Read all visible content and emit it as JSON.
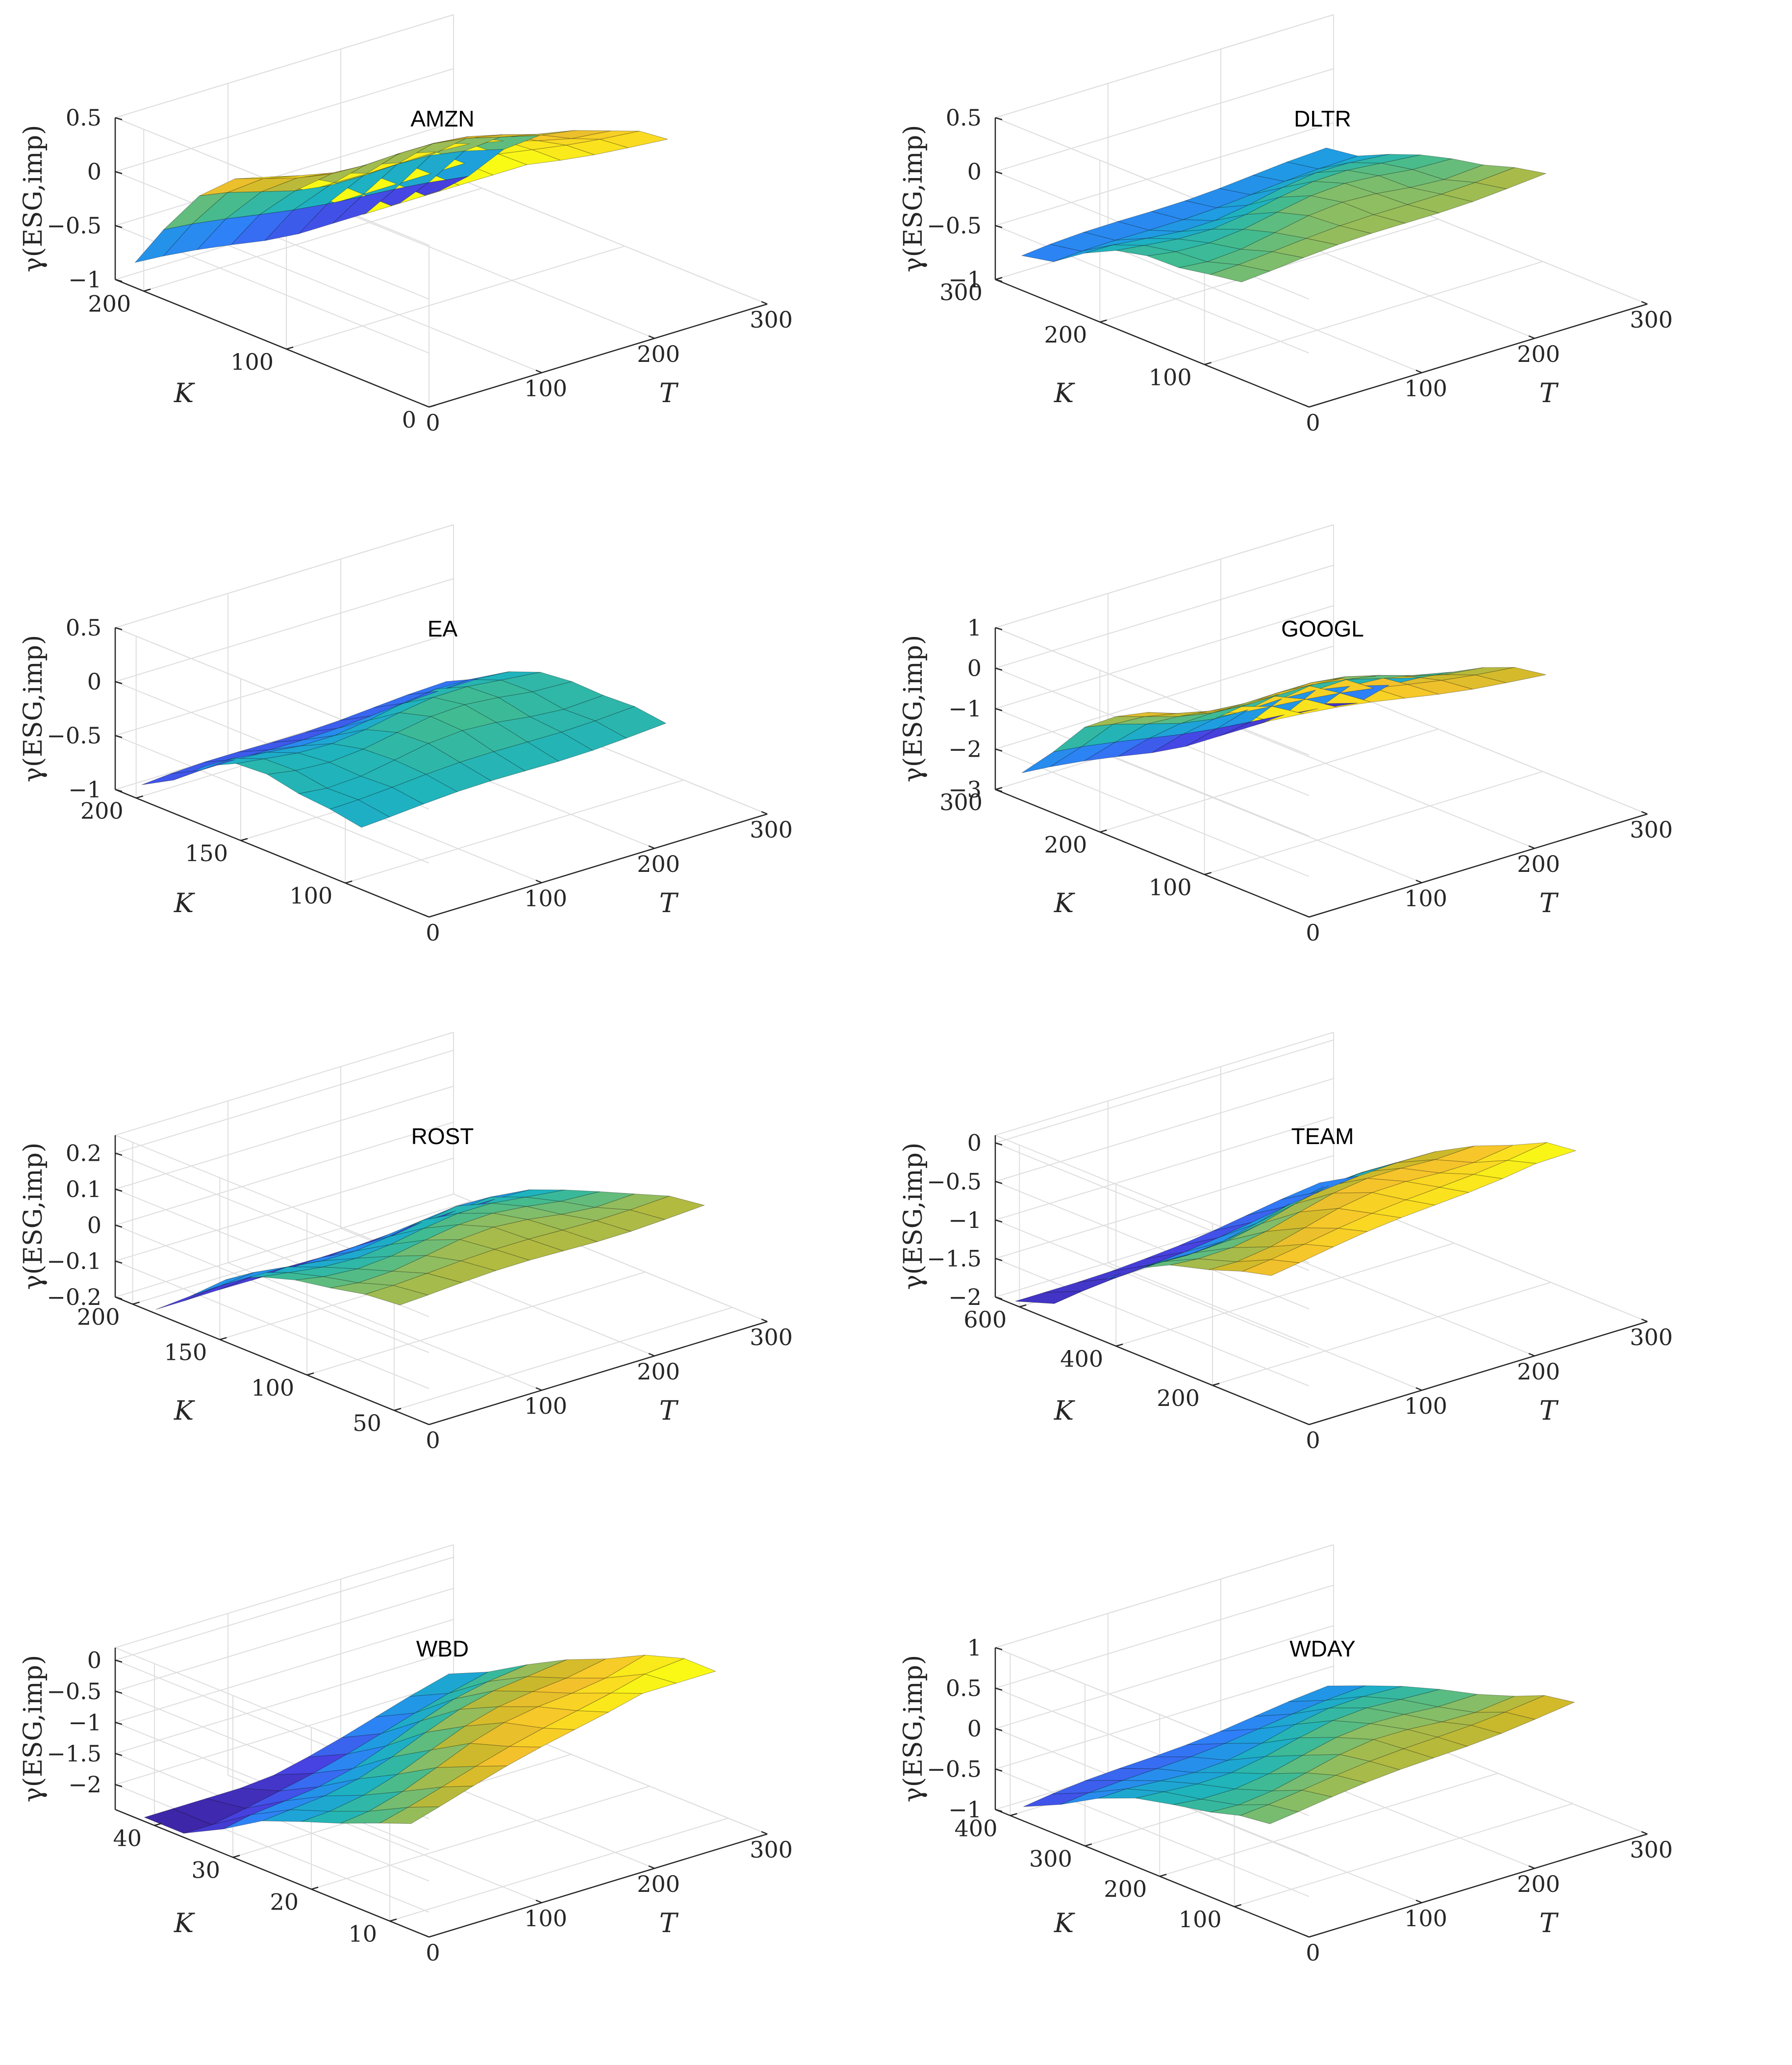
{
  "colors": {
    "colormap": [
      "#3e26a8",
      "#4743e3",
      "#2f7ff8",
      "#1e9ee0",
      "#1eb3be",
      "#42bb90",
      "#8cbd63",
      "#c9b82b",
      "#f5c22c",
      "#fadd20",
      "#f9fb14"
    ],
    "grid": "#dedede",
    "axis": "#262626",
    "mesh_edge": "#000000"
  },
  "chart_data": [
    {
      "type": "surface3d",
      "ticker": "AMZN",
      "zlabel": "γ(ESG,imp)",
      "xlabel": "T",
      "ylabel": "K",
      "xlim": [
        0,
        300
      ],
      "xticks": [
        0,
        100,
        200,
        300
      ],
      "ylim": [
        0,
        220
      ],
      "yticks": [
        0,
        100,
        200
      ],
      "zlim": [
        -1,
        0.5
      ],
      "zticks": [
        -1,
        -0.5,
        0,
        0.5
      ],
      "zticklabels": [
        "−1",
        "−0.5",
        "0",
        "0.5"
      ],
      "grid": true,
      "surface_K": [
        210,
        190,
        165,
        140,
        115,
        90,
        70,
        50
      ],
      "surface_T": [
        5,
        30,
        60,
        90,
        120,
        150,
        180,
        210,
        240,
        275
      ],
      "surface_gamma_by_K": [
        -1.0,
        -0.6,
        -0.2,
        0.1,
        0.3,
        0.42,
        0.48,
        0.5
      ],
      "surface_gamma_T_slope": -0.0009
    },
    {
      "type": "surface3d",
      "ticker": "DLTR",
      "zlabel": "γ(ESG,imp)",
      "xlabel": "T",
      "ylabel": "K",
      "xlim": [
        0,
        300
      ],
      "xticks": [
        0,
        100,
        200,
        300
      ],
      "ylim": [
        0,
        300
      ],
      "yticks": [
        100,
        200,
        300
      ],
      "zlim": [
        -1,
        0.5
      ],
      "zticks": [
        -1,
        -0.5,
        0,
        0.5
      ],
      "zticklabels": [
        "−1",
        "−0.5",
        "0",
        "0.5"
      ],
      "grid": true,
      "surface_K": [
        280,
        250,
        220,
        190,
        160,
        130,
        100,
        70
      ],
      "surface_T": [
        5,
        30,
        60,
        90,
        120,
        150,
        180,
        210,
        240,
        275
      ],
      "surface_gamma_by_K": [
        -0.65,
        -0.6,
        -0.45,
        -0.3,
        -0.2,
        -0.15,
        -0.1,
        -0.05
      ],
      "surface_gamma_T_slope": 0.0003
    },
    {
      "type": "surface3d",
      "ticker": "EA",
      "zlabel": "γ(ESG,imp)",
      "xlabel": "T",
      "ylabel": "K",
      "xlim": [
        0,
        300
      ],
      "xticks": [
        0,
        100,
        200,
        300
      ],
      "ylim": [
        60,
        210
      ],
      "yticks": [
        100,
        150,
        200
      ],
      "zlim": [
        -1,
        0.5
      ],
      "zticks": [
        -1,
        -0.5,
        0,
        0.5
      ],
      "zticklabels": [
        "−1",
        "−0.5",
        "0",
        "0.5"
      ],
      "grid": true,
      "surface_K": [
        200,
        185,
        170,
        155,
        140,
        125,
        110,
        95
      ],
      "surface_T": [
        5,
        30,
        60,
        90,
        120,
        150,
        180,
        210,
        240,
        275
      ],
      "surface_gamma_by_K": [
        -0.85,
        -0.7,
        -0.5,
        -0.35,
        -0.3,
        -0.32,
        -0.35,
        -0.4
      ],
      "surface_gamma_T_slope": 0.0002
    },
    {
      "type": "surface3d",
      "ticker": "GOOGL",
      "zlabel": "γ(ESG,imp)",
      "xlabel": "T",
      "ylabel": "K",
      "xlim": [
        0,
        300
      ],
      "xticks": [
        0,
        100,
        200,
        300
      ],
      "ylim": [
        0,
        300
      ],
      "yticks": [
        100,
        200,
        300
      ],
      "zlim": [
        -3,
        1
      ],
      "zticks": [
        -3,
        -2,
        -1,
        0,
        1
      ],
      "zticklabels": [
        "−3",
        "−2",
        "−1",
        "0",
        "1"
      ],
      "grid": true,
      "surface_K": [
        280,
        250,
        220,
        190,
        160,
        130,
        100,
        70
      ],
      "surface_T": [
        5,
        30,
        60,
        90,
        120,
        150,
        180,
        210,
        240,
        275
      ],
      "surface_gamma_by_K": [
        -3.0,
        -2.2,
        -1.4,
        -0.8,
        -0.3,
        0.1,
        0.3,
        0.4
      ],
      "surface_gamma_T_slope": -0.001
    },
    {
      "type": "surface3d",
      "ticker": "ROST",
      "zlabel": "γ(ESG,imp)",
      "xlabel": "T",
      "ylabel": "K",
      "xlim": [
        0,
        300
      ],
      "xticks": [
        0,
        100,
        200,
        300
      ],
      "ylim": [
        30,
        210
      ],
      "yticks": [
        50,
        100,
        150,
        200
      ],
      "zlim": [
        -0.2,
        0.25
      ],
      "zticks": [
        -0.2,
        -0.1,
        0,
        0.1,
        0.2
      ],
      "zticklabels": [
        "−0.2",
        "−0.1",
        "0",
        "0.1",
        "0.2"
      ],
      "grid": true,
      "surface_K": [
        190,
        170,
        150,
        130,
        110,
        90,
        70,
        50
      ],
      "surface_T": [
        5,
        30,
        60,
        90,
        120,
        150,
        180,
        210,
        240,
        275
      ],
      "surface_gamma_by_K": [
        -0.2,
        -0.12,
        -0.05,
        0.0,
        0.04,
        0.07,
        0.09,
        0.1
      ],
      "surface_gamma_T_slope": 0.0001
    },
    {
      "type": "surface3d",
      "ticker": "TEAM",
      "zlabel": "γ(ESG,imp)",
      "xlabel": "T",
      "ylabel": "K",
      "xlim": [
        0,
        300
      ],
      "xticks": [
        0,
        100,
        200,
        300
      ],
      "ylim": [
        0,
        650
      ],
      "yticks": [
        200,
        400,
        600
      ],
      "zlim": [
        -2,
        0.1
      ],
      "zticks": [
        -2,
        -1.5,
        -1,
        -0.5,
        0
      ],
      "zticklabels": [
        "−2",
        "−1.5",
        "−1",
        "−0.5",
        "0"
      ],
      "grid": true,
      "surface_K": [
        620,
        540,
        460,
        380,
        300,
        220,
        150,
        90
      ],
      "surface_T": [
        5,
        30,
        60,
        90,
        120,
        150,
        180,
        210,
        240,
        275
      ],
      "surface_gamma_by_K": [
        -1.9,
        -1.6,
        -1.2,
        -0.8,
        -0.5,
        -0.3,
        -0.15,
        -0.05
      ],
      "surface_gamma_T_slope": 0.0008
    },
    {
      "type": "surface3d",
      "ticker": "WBD",
      "zlabel": "γ(ESG,imp)",
      "xlabel": "T",
      "ylabel": "K",
      "xlim": [
        0,
        300
      ],
      "xticks": [
        0,
        100,
        200,
        300
      ],
      "ylim": [
        5,
        45
      ],
      "yticks": [
        10,
        20,
        30,
        40
      ],
      "zlim": [
        -2.4,
        0.2
      ],
      "zticks": [
        -2,
        -1.5,
        -1,
        -0.5,
        0
      ],
      "zticklabels": [
        "−2",
        "−1.5",
        "−1",
        "−0.5",
        "0"
      ],
      "grid": true,
      "surface_K": [
        42,
        37,
        32,
        27,
        22,
        17,
        12,
        8
      ],
      "surface_T": [
        5,
        30,
        60,
        90,
        120,
        150,
        180,
        210,
        240,
        275
      ],
      "surface_gamma_by_K": [
        -2.2,
        -1.9,
        -1.5,
        -1.1,
        -0.8,
        -0.5,
        -0.25,
        -0.05
      ],
      "surface_gamma_T_slope": 0.0018
    },
    {
      "type": "surface3d",
      "ticker": "WDAY",
      "zlabel": "γ(ESG,imp)",
      "xlabel": "T",
      "ylabel": "K",
      "xlim": [
        0,
        300
      ],
      "xticks": [
        0,
        100,
        200,
        300
      ],
      "ylim": [
        0,
        420
      ],
      "yticks": [
        100,
        200,
        300,
        400
      ],
      "zlim": [
        -1,
        1
      ],
      "zticks": [
        -1,
        -0.5,
        0,
        0.5,
        1
      ],
      "zticklabels": [
        "−1",
        "−0.5",
        "0",
        "0.5",
        "1"
      ],
      "grid": true,
      "surface_K": [
        390,
        340,
        290,
        240,
        190,
        140,
        100,
        60
      ],
      "surface_T": [
        5,
        30,
        60,
        90,
        120,
        150,
        180,
        210,
        240,
        275
      ],
      "surface_gamma_by_K": [
        -0.7,
        -0.5,
        -0.3,
        -0.1,
        0.05,
        0.2,
        0.3,
        0.35
      ],
      "surface_gamma_T_slope": 0.0006
    }
  ]
}
